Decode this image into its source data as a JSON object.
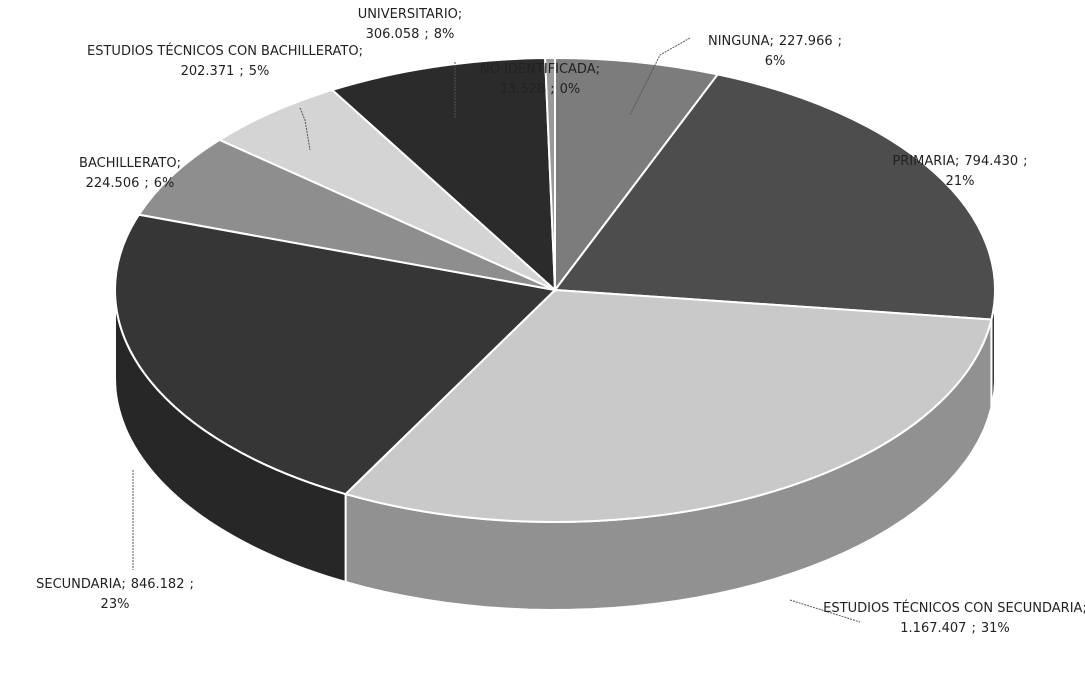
{
  "chart_data": {
    "type": "pie3d",
    "categories": [
      "NINGUNA",
      "PRIMARIA",
      "ESTUDIOS TÉCNICOS CON SECUNDARIA",
      "SECUNDARIA",
      "BACHILLERATO",
      "ESTUDIOS TÉCNICOS CON BACHILLERATO",
      "UNIVERSITARIO",
      "NO IDENTIFICADA"
    ],
    "values": [
      227966,
      794430,
      1167407,
      846182,
      224506,
      202371,
      306058,
      13528
    ],
    "value_labels": [
      "227.966",
      "794.430",
      "1.167.407",
      "846.182",
      "224.506",
      "202.371",
      "306.058",
      "13.528"
    ],
    "percent_labels": [
      "6%",
      "21%",
      "31%",
      "23%",
      "6%",
      "5%",
      "8%",
      "0%"
    ],
    "label_separator": ";",
    "colors": [
      "#7c7c7c",
      "#4d4d4d",
      "#c9c9c9",
      "#363636",
      "#8e8e8e",
      "#d4d4d4",
      "#2b2b2b",
      "#9a9a9a"
    ]
  }
}
